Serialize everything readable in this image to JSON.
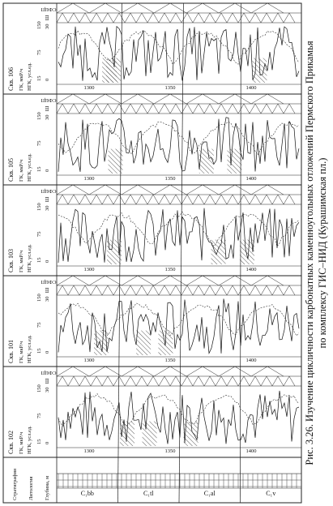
{
  "caption": [
    "Рис. 3.26. Изучение цикличности карбонатных каменноугольных отложений Пермского Прикамья",
    "по комплексу ГИС–НИД (Курашимская пл.)"
  ],
  "strat_header": {
    "stratigraphy": "Стратиграфия",
    "lithology": "Литология",
    "depth": "Глубина, м"
  },
  "strat_units": [
    "C₁bb",
    "C₁tl",
    "C₁al",
    "C₁v"
  ],
  "log_headers": {
    "gk": "ГК, мкР/ч",
    "ngk": "НГК, усл.ед.",
    "sh": "Ш",
    "sfcp": "СФЦП"
  },
  "gk_scale": [
    "15",
    "75",
    "150"
  ],
  "ngk_scale": [
    "0",
    "30"
  ],
  "wells": [
    {
      "name": "Скв. 102",
      "depths": [
        "1300",
        "1350",
        "1400"
      ]
    },
    {
      "name": "Скв. 101",
      "depths": [
        "1300",
        "1350",
        "1400"
      ]
    },
    {
      "name": "Скв. 103",
      "depths": [
        "1300",
        "1350",
        "1400"
      ]
    },
    {
      "name": "Скв. 105",
      "depths": [
        "1300",
        "1350",
        "1400"
      ]
    },
    {
      "name": "Скв. 106",
      "depths": [
        "1300",
        "1350",
        "1400"
      ]
    }
  ]
}
